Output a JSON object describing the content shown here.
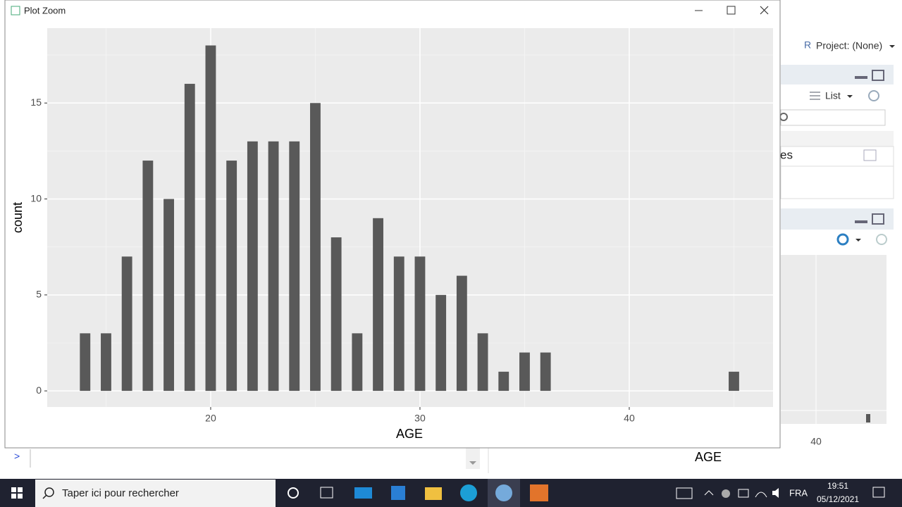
{
  "window": {
    "title": "Plot Zoom"
  },
  "chart_data": {
    "type": "bar",
    "x": [
      14,
      15,
      16,
      17,
      18,
      19,
      20,
      21,
      22,
      23,
      24,
      25,
      26,
      27,
      28,
      29,
      30,
      31,
      32,
      33,
      34,
      35,
      36,
      45
    ],
    "values": [
      3,
      3,
      7,
      12,
      10,
      16,
      18,
      12,
      13,
      13,
      13,
      15,
      8,
      3,
      9,
      7,
      7,
      5,
      6,
      3,
      1,
      2,
      2,
      1
    ],
    "color": "#595959",
    "xlabel": "AGE",
    "ylabel": "count",
    "xlim": [
      12.19,
      46.87
    ],
    "ylim": [
      -0.84,
      18.9
    ],
    "xticks": [
      20,
      30,
      40
    ],
    "yticks": [
      0,
      5,
      10,
      15
    ],
    "grid": true
  },
  "rstudio": {
    "project": "Project: (None)",
    "view_mode": "List",
    "pane_text": "es",
    "mini_plot_tick": "40",
    "mini_plot_xlabel": "AGE",
    "console_prompt": ">"
  },
  "taskbar": {
    "search": "Taper ici pour rechercher",
    "language": "FRA",
    "time": "19:51",
    "date": "05/12/2021"
  }
}
